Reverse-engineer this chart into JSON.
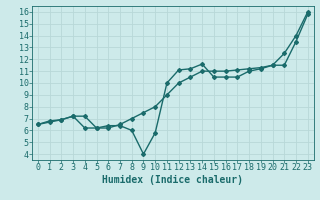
{
  "xlabel": "Humidex (Indice chaleur)",
  "ylabel": "",
  "bg_color": "#cdeaea",
  "line_color": "#1a6b6b",
  "grid_color": "#b8d8d8",
  "xlim": [
    -0.5,
    23.5
  ],
  "ylim": [
    3.5,
    16.5
  ],
  "xticks": [
    0,
    1,
    2,
    3,
    4,
    5,
    6,
    7,
    8,
    9,
    10,
    11,
    12,
    13,
    14,
    15,
    16,
    17,
    18,
    19,
    20,
    21,
    22,
    23
  ],
  "yticks": [
    4,
    5,
    6,
    7,
    8,
    9,
    10,
    11,
    12,
    13,
    14,
    15,
    16
  ],
  "line1_x": [
    0,
    1,
    2,
    3,
    4,
    5,
    6,
    7,
    8,
    9,
    10,
    11,
    12,
    13,
    14,
    15,
    16,
    17,
    18,
    19,
    20,
    21,
    22,
    23
  ],
  "line1_y": [
    6.5,
    6.7,
    6.9,
    7.2,
    7.2,
    6.2,
    6.2,
    6.5,
    7.0,
    7.5,
    8.0,
    9.0,
    10.0,
    10.5,
    11.0,
    11.0,
    11.0,
    11.1,
    11.2,
    11.3,
    11.5,
    11.5,
    13.5,
    15.8
  ],
  "line2_x": [
    0,
    1,
    2,
    3,
    4,
    5,
    6,
    7,
    8,
    9,
    10,
    11,
    12,
    13,
    14,
    15,
    16,
    17,
    18,
    19,
    20,
    21,
    22,
    23
  ],
  "line2_y": [
    6.5,
    6.8,
    6.9,
    7.2,
    6.2,
    6.2,
    6.4,
    6.4,
    6.0,
    4.0,
    5.8,
    10.0,
    11.1,
    11.2,
    11.6,
    10.5,
    10.5,
    10.5,
    11.0,
    11.2,
    11.5,
    12.5,
    14.0,
    16.0
  ],
  "marker": "D",
  "markersize": 2.0,
  "linewidth": 1.0,
  "xlabel_fontsize": 7,
  "tick_fontsize": 6,
  "title_fontsize": 7
}
